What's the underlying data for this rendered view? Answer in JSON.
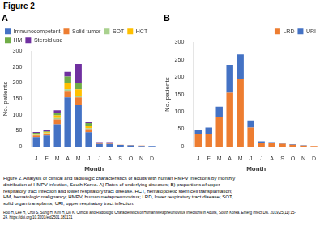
{
  "title": "Figure 2",
  "chart_data": [
    {
      "type": "bar",
      "stacked": true,
      "title": "A",
      "categories": [
        "J",
        "F",
        "M",
        "A",
        "M",
        "J",
        "J",
        "A",
        "S",
        "O",
        "N",
        "D"
      ],
      "series": [
        {
          "name": "Immunocompetent",
          "color": "#4472C4",
          "values": [
            30,
            35,
            70,
            155,
            130,
            45,
            8,
            8,
            5,
            4,
            2,
            2
          ]
        },
        {
          "name": "Solid tumor",
          "color": "#ED7D31",
          "values": [
            5,
            5,
            15,
            20,
            25,
            10,
            2,
            2,
            1,
            1,
            1,
            0
          ]
        },
        {
          "name": "SOT",
          "color": "#A9D18E",
          "values": [
            2,
            2,
            5,
            5,
            5,
            3,
            1,
            1,
            0,
            0,
            0,
            0
          ]
        },
        {
          "name": "HCT",
          "color": "#FFC000",
          "values": [
            3,
            3,
            8,
            20,
            20,
            8,
            1,
            1,
            0,
            0,
            0,
            0
          ]
        },
        {
          "name": "HM",
          "color": "#70AD47",
          "values": [
            3,
            3,
            8,
            20,
            20,
            8,
            1,
            1,
            0,
            0,
            0,
            0
          ]
        },
        {
          "name": "Steroid use",
          "color": "#7030A0",
          "values": [
            3,
            3,
            8,
            15,
            60,
            5,
            1,
            1,
            0,
            0,
            0,
            0
          ]
        }
      ],
      "xlabel": "Month",
      "ylabel": "No. patients",
      "ylim": [
        0,
        300
      ],
      "yticks": [
        0,
        50,
        100,
        150,
        200,
        250,
        300
      ],
      "grid": false,
      "legend": "upper left"
    },
    {
      "type": "bar",
      "stacked": true,
      "title": "B",
      "categories": [
        "J",
        "F",
        "M",
        "A",
        "M",
        "J",
        "J",
        "A",
        "S",
        "O",
        "N",
        "D"
      ],
      "series": [
        {
          "name": "LRD",
          "color": "#ED7D31",
          "values": [
            35,
            35,
            85,
            155,
            195,
            55,
            10,
            10,
            8,
            5,
            3,
            2
          ]
        },
        {
          "name": "URI",
          "color": "#4472C4",
          "values": [
            12,
            20,
            30,
            80,
            70,
            20,
            5,
            3,
            2,
            2,
            1,
            0
          ]
        }
      ],
      "xlabel": "Month",
      "ylabel": "No. patients",
      "ylim": [
        0,
        300
      ],
      "yticks": [
        0,
        50,
        100,
        150,
        200,
        250,
        300
      ],
      "grid": false,
      "legend": "upper right"
    }
  ],
  "annotations": [
    [
      "Figure 2. Analysis of clinical and radiologic characteristics of adults with human HMPV infections by monthly",
      "distribution of HMPV infection, South Korea. A) Rates of underlying diseases; B) proportions of upper",
      "respiratory tract infection and lower respiratory tract disease. HCT, hematopoietic stem cell transplantation;",
      "HM, hematologic malignancy; HMPV, human metapneumovirus; LRD, lower respiratory tract disease; SOT,",
      "solid organ transplants; URI, upper respiratory tract infection."
    ],
    [
      "Roo H, Lee H, Choi S, Sung H, Kim H, Do K. Clinical and Radiologic Characteristics of Human Metapneumovirus Infections in Adults, South Korea. Emerg Infect Dis. 2019;25(11):15-",
      "24. https://doi.org/10.3201/eid2501.181131"
    ]
  ]
}
